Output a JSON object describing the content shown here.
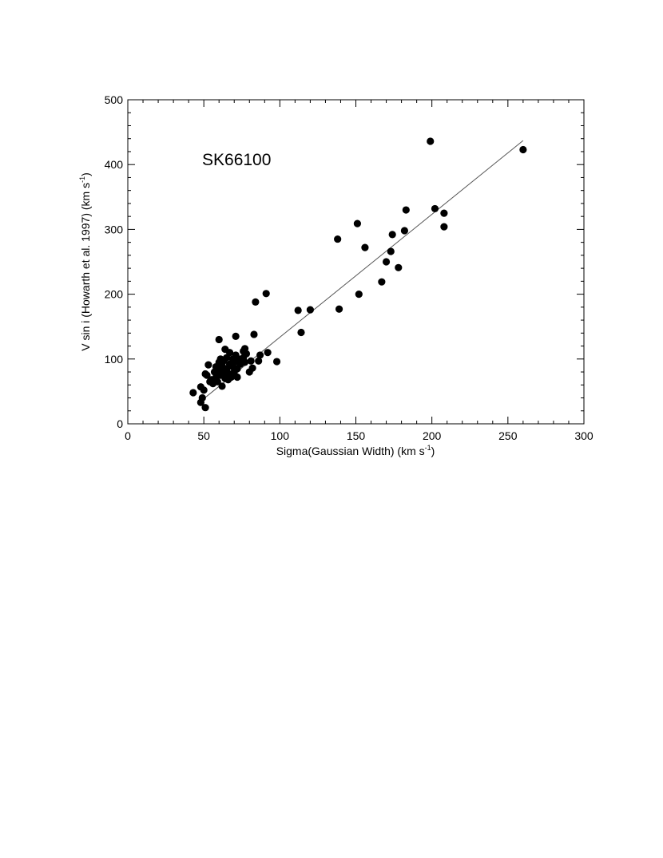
{
  "chart_data": {
    "type": "scatter",
    "title": "",
    "annotation": "SK66100",
    "xlabel": {
      "main": "Sigma(Gaussian Width) (km s",
      "sup": "-1",
      "tail": ")"
    },
    "ylabel": {
      "main": "V sin i (Howarth et al. 1997) (km s",
      "sup": "-1",
      "tail": ")"
    },
    "xlim": [
      0,
      300
    ],
    "ylim": [
      0,
      500
    ],
    "x_ticks": [
      "0",
      "50",
      "100",
      "150",
      "200",
      "250",
      "300"
    ],
    "y_ticks": [
      "0",
      "100",
      "200",
      "300",
      "400",
      "500"
    ],
    "grid": false,
    "fit_line": {
      "x": [
        48,
        260
      ],
      "y": [
        35,
        437
      ],
      "color": "#555555"
    },
    "marker_color": "#000000",
    "points": [
      {
        "x": 43,
        "y": 48
      },
      {
        "x": 48,
        "y": 57
      },
      {
        "x": 48,
        "y": 33
      },
      {
        "x": 49,
        "y": 40
      },
      {
        "x": 50,
        "y": 52
      },
      {
        "x": 51,
        "y": 25
      },
      {
        "x": 51,
        "y": 77
      },
      {
        "x": 52,
        "y": 75
      },
      {
        "x": 53,
        "y": 91
      },
      {
        "x": 54,
        "y": 65
      },
      {
        "x": 55,
        "y": 68
      },
      {
        "x": 56,
        "y": 62
      },
      {
        "x": 57,
        "y": 80
      },
      {
        "x": 58,
        "y": 72
      },
      {
        "x": 58,
        "y": 88
      },
      {
        "x": 59,
        "y": 65
      },
      {
        "x": 60,
        "y": 95
      },
      {
        "x": 60,
        "y": 130
      },
      {
        "x": 60,
        "y": 83
      },
      {
        "x": 61,
        "y": 100
      },
      {
        "x": 61,
        "y": 75
      },
      {
        "x": 62,
        "y": 58
      },
      {
        "x": 62,
        "y": 90
      },
      {
        "x": 63,
        "y": 97
      },
      {
        "x": 63,
        "y": 80
      },
      {
        "x": 64,
        "y": 70
      },
      {
        "x": 64,
        "y": 115
      },
      {
        "x": 65,
        "y": 85
      },
      {
        "x": 65,
        "y": 102
      },
      {
        "x": 66,
        "y": 68
      },
      {
        "x": 66,
        "y": 78
      },
      {
        "x": 67,
        "y": 92
      },
      {
        "x": 67,
        "y": 110
      },
      {
        "x": 68,
        "y": 72
      },
      {
        "x": 69,
        "y": 88
      },
      {
        "x": 69,
        "y": 100
      },
      {
        "x": 70,
        "y": 80
      },
      {
        "x": 70,
        "y": 95
      },
      {
        "x": 71,
        "y": 135
      },
      {
        "x": 71,
        "y": 106
      },
      {
        "x": 72,
        "y": 72
      },
      {
        "x": 72,
        "y": 85
      },
      {
        "x": 73,
        "y": 100
      },
      {
        "x": 74,
        "y": 92
      },
      {
        "x": 75,
        "y": 98
      },
      {
        "x": 76,
        "y": 112
      },
      {
        "x": 76,
        "y": 102
      },
      {
        "x": 77,
        "y": 95
      },
      {
        "x": 77,
        "y": 116
      },
      {
        "x": 78,
        "y": 108
      },
      {
        "x": 80,
        "y": 80
      },
      {
        "x": 81,
        "y": 97
      },
      {
        "x": 82,
        "y": 86
      },
      {
        "x": 83,
        "y": 138
      },
      {
        "x": 84,
        "y": 188
      },
      {
        "x": 86,
        "y": 97
      },
      {
        "x": 87,
        "y": 106
      },
      {
        "x": 91,
        "y": 201
      },
      {
        "x": 92,
        "y": 110
      },
      {
        "x": 98,
        "y": 96
      },
      {
        "x": 112,
        "y": 175
      },
      {
        "x": 114,
        "y": 141
      },
      {
        "x": 120,
        "y": 176
      },
      {
        "x": 138,
        "y": 285
      },
      {
        "x": 139,
        "y": 177
      },
      {
        "x": 151,
        "y": 309
      },
      {
        "x": 152,
        "y": 200
      },
      {
        "x": 156,
        "y": 272
      },
      {
        "x": 167,
        "y": 219
      },
      {
        "x": 170,
        "y": 250
      },
      {
        "x": 173,
        "y": 266
      },
      {
        "x": 174,
        "y": 292
      },
      {
        "x": 178,
        "y": 241
      },
      {
        "x": 182,
        "y": 298
      },
      {
        "x": 183,
        "y": 330
      },
      {
        "x": 199,
        "y": 436
      },
      {
        "x": 202,
        "y": 332
      },
      {
        "x": 208,
        "y": 304
      },
      {
        "x": 208,
        "y": 325
      },
      {
        "x": 260,
        "y": 423
      }
    ]
  }
}
